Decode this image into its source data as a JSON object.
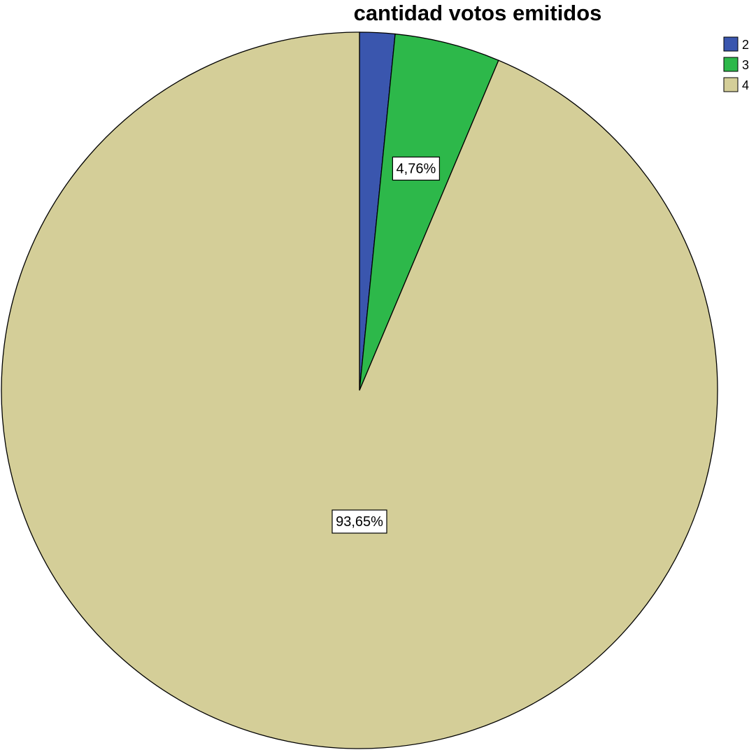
{
  "chart_data": {
    "type": "pie",
    "title": "cantidad votos emitidos",
    "categories": [
      "2",
      "3",
      "4"
    ],
    "values": [
      1.59,
      4.76,
      93.65
    ],
    "unit": "%",
    "data_labels": [
      "",
      "4,76%",
      "93,65%"
    ],
    "colors": [
      "#3A56AE",
      "#2DB84A",
      "#D4CE98"
    ],
    "start_angle_deg": 0,
    "direction": "clockwise",
    "legend": {
      "placement": "top-right",
      "entries": [
        "2",
        "3",
        "4"
      ]
    }
  }
}
